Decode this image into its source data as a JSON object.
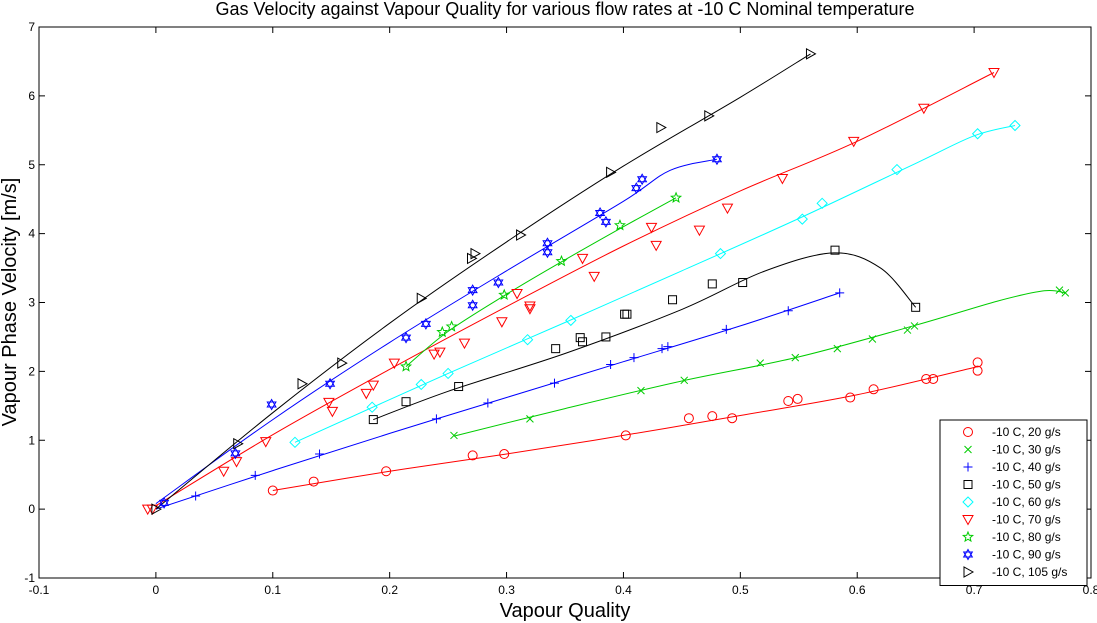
{
  "chart_data": {
    "type": "scatter",
    "title": "Gas Velocity against Vapour Quality for various flow rates at -10 C Nominal temperature",
    "xlabel": "Vapour Quality",
    "ylabel": "Vapour Phase Velocity [m/s]",
    "xlim": [
      -0.1,
      0.8
    ],
    "ylim": [
      -1,
      7
    ],
    "xticks": [
      "-0.1",
      "0",
      "0.1",
      "0.2",
      "0.3",
      "0.4",
      "0.5",
      "0.6",
      "0.7",
      "0.8"
    ],
    "yticks": [
      "-1",
      "0",
      "1",
      "2",
      "3",
      "4",
      "5",
      "6",
      "7"
    ],
    "grid": false,
    "legend_position": "bottom-right",
    "series": [
      {
        "name": "-10 C, 20 g/s",
        "color": "#ff0000",
        "marker": "circle",
        "points": [
          [
            0.1,
            0.27
          ],
          [
            0.135,
            0.4
          ],
          [
            0.197,
            0.55
          ],
          [
            0.271,
            0.78
          ],
          [
            0.298,
            0.8
          ],
          [
            0.402,
            1.07
          ],
          [
            0.456,
            1.32
          ],
          [
            0.476,
            1.35
          ],
          [
            0.493,
            1.32
          ],
          [
            0.541,
            1.57
          ],
          [
            0.549,
            1.6
          ],
          [
            0.594,
            1.62
          ],
          [
            0.614,
            1.74
          ],
          [
            0.659,
            1.89
          ],
          [
            0.665,
            1.89
          ],
          [
            0.703,
            2.01
          ],
          [
            0.703,
            2.13
          ]
        ],
        "fit": [
          [
            0.1,
            0.27
          ],
          [
            0.2,
            0.55
          ],
          [
            0.3,
            0.8
          ],
          [
            0.4,
            1.07
          ],
          [
            0.5,
            1.36
          ],
          [
            0.6,
            1.66
          ],
          [
            0.703,
            2.07
          ]
        ]
      },
      {
        "name": "-10 C, 30 g/s",
        "color": "#00cc00",
        "marker": "x",
        "points": [
          [
            0.255,
            1.07
          ],
          [
            0.32,
            1.31
          ],
          [
            0.415,
            1.72
          ],
          [
            0.452,
            1.87
          ],
          [
            0.517,
            2.12
          ],
          [
            0.547,
            2.2
          ],
          [
            0.583,
            2.33
          ],
          [
            0.613,
            2.47
          ],
          [
            0.643,
            2.6
          ],
          [
            0.649,
            2.66
          ],
          [
            0.773,
            3.18
          ],
          [
            0.778,
            3.14
          ]
        ],
        "fit": [
          [
            0.255,
            1.06
          ],
          [
            0.35,
            1.46
          ],
          [
            0.45,
            1.86
          ],
          [
            0.55,
            2.21
          ],
          [
            0.65,
            2.67
          ],
          [
            0.72,
            3.02
          ],
          [
            0.76,
            3.17
          ],
          [
            0.778,
            3.14
          ]
        ]
      },
      {
        "name": "-10 C, 40 g/s",
        "color": "#0000ff",
        "marker": "plus",
        "points": [
          [
            0.034,
            0.19
          ],
          [
            0.085,
            0.49
          ],
          [
            0.14,
            0.8
          ],
          [
            0.24,
            1.31
          ],
          [
            0.284,
            1.54
          ],
          [
            0.341,
            1.83
          ],
          [
            0.389,
            2.1
          ],
          [
            0.409,
            2.2
          ],
          [
            0.433,
            2.33
          ],
          [
            0.438,
            2.36
          ],
          [
            0.488,
            2.61
          ],
          [
            0.541,
            2.88
          ],
          [
            0.585,
            3.14
          ]
        ],
        "fit": [
          [
            0.0,
            0.0
          ],
          [
            0.1,
            0.56
          ],
          [
            0.2,
            1.1
          ],
          [
            0.3,
            1.62
          ],
          [
            0.4,
            2.14
          ],
          [
            0.5,
            2.66
          ],
          [
            0.585,
            3.14
          ]
        ]
      },
      {
        "name": "-10 C, 50 g/s",
        "color": "#000000",
        "marker": "square",
        "points": [
          [
            0.186,
            1.3
          ],
          [
            0.214,
            1.56
          ],
          [
            0.259,
            1.78
          ],
          [
            0.342,
            2.33
          ],
          [
            0.363,
            2.49
          ],
          [
            0.365,
            2.43
          ],
          [
            0.385,
            2.5
          ],
          [
            0.401,
            2.83
          ],
          [
            0.403,
            2.83
          ],
          [
            0.442,
            3.04
          ],
          [
            0.476,
            3.27
          ],
          [
            0.502,
            3.29
          ],
          [
            0.581,
            3.76
          ],
          [
            0.65,
            2.93
          ]
        ],
        "fit": [
          [
            0.186,
            1.3
          ],
          [
            0.25,
            1.71
          ],
          [
            0.35,
            2.26
          ],
          [
            0.45,
            2.9
          ],
          [
            0.52,
            3.45
          ],
          [
            0.58,
            3.72
          ],
          [
            0.62,
            3.5
          ],
          [
            0.65,
            2.93
          ]
        ]
      },
      {
        "name": "-10 C, 60 g/s",
        "color": "#00ffff",
        "marker": "diamond",
        "points": [
          [
            0.119,
            0.97
          ],
          [
            0.185,
            1.48
          ],
          [
            0.227,
            1.81
          ],
          [
            0.25,
            1.97
          ],
          [
            0.318,
            2.46
          ],
          [
            0.355,
            2.74
          ],
          [
            0.483,
            3.71
          ],
          [
            0.553,
            4.21
          ],
          [
            0.57,
            4.44
          ],
          [
            0.634,
            4.93
          ],
          [
            0.703,
            5.45
          ],
          [
            0.735,
            5.57
          ]
        ],
        "fit": [
          [
            0.119,
            0.97
          ],
          [
            0.25,
            1.97
          ],
          [
            0.35,
            2.71
          ],
          [
            0.45,
            3.46
          ],
          [
            0.55,
            4.22
          ],
          [
            0.65,
            5.02
          ],
          [
            0.7,
            5.42
          ],
          [
            0.735,
            5.57
          ]
        ]
      },
      {
        "name": "-10 C, 70 g/s",
        "color": "#ff0000",
        "marker": "triangle-down",
        "points": [
          [
            -0.007,
            0.0
          ],
          [
            -0.003,
            0.0
          ],
          [
            0.058,
            0.55
          ],
          [
            0.069,
            0.69
          ],
          [
            0.094,
            0.98
          ],
          [
            0.148,
            1.55
          ],
          [
            0.151,
            1.42
          ],
          [
            0.18,
            1.68
          ],
          [
            0.186,
            1.8
          ],
          [
            0.204,
            2.12
          ],
          [
            0.238,
            2.25
          ],
          [
            0.243,
            2.28
          ],
          [
            0.264,
            2.41
          ],
          [
            0.296,
            2.72
          ],
          [
            0.309,
            3.13
          ],
          [
            0.32,
            2.91
          ],
          [
            0.32,
            2.95
          ],
          [
            0.365,
            3.64
          ],
          [
            0.375,
            3.38
          ],
          [
            0.424,
            4.09
          ],
          [
            0.428,
            3.83
          ],
          [
            0.465,
            4.05
          ],
          [
            0.489,
            4.37
          ],
          [
            0.536,
            4.8
          ],
          [
            0.597,
            5.34
          ],
          [
            0.657,
            5.82
          ],
          [
            0.717,
            6.34
          ]
        ],
        "fit": [
          [
            0.0,
            0.05
          ],
          [
            0.1,
            1.08
          ],
          [
            0.2,
            2.03
          ],
          [
            0.3,
            2.94
          ],
          [
            0.4,
            3.82
          ],
          [
            0.5,
            4.62
          ],
          [
            0.6,
            5.34
          ],
          [
            0.717,
            6.34
          ]
        ]
      },
      {
        "name": "-10 C, 80 g/s",
        "color": "#00cc00",
        "marker": "star",
        "points": [
          [
            0.214,
            2.07
          ],
          [
            0.245,
            2.57
          ],
          [
            0.253,
            2.65
          ],
          [
            0.298,
            3.11
          ],
          [
            0.347,
            3.6
          ],
          [
            0.397,
            4.12
          ],
          [
            0.445,
            4.52
          ]
        ],
        "fit": [
          [
            0.214,
            2.07
          ],
          [
            0.25,
            2.58
          ],
          [
            0.3,
            3.12
          ],
          [
            0.35,
            3.62
          ],
          [
            0.4,
            4.1
          ],
          [
            0.445,
            4.52
          ]
        ]
      },
      {
        "name": "-10 C, 90 g/s",
        "color": "#0000ff",
        "marker": "hexagram",
        "points": [
          [
            0.007,
            0.09
          ],
          [
            0.068,
            0.81
          ],
          [
            0.099,
            1.52
          ],
          [
            0.149,
            1.82
          ],
          [
            0.214,
            2.49
          ],
          [
            0.231,
            2.69
          ],
          [
            0.271,
            2.96
          ],
          [
            0.271,
            3.18
          ],
          [
            0.293,
            3.29
          ],
          [
            0.335,
            3.86
          ],
          [
            0.335,
            3.73
          ],
          [
            0.38,
            4.3
          ],
          [
            0.385,
            4.17
          ],
          [
            0.411,
            4.66
          ],
          [
            0.416,
            4.79
          ],
          [
            0.48,
            5.08
          ]
        ],
        "fit": [
          [
            0.0,
            0.08
          ],
          [
            0.1,
            1.3
          ],
          [
            0.2,
            2.42
          ],
          [
            0.3,
            3.46
          ],
          [
            0.4,
            4.47
          ],
          [
            0.44,
            4.92
          ],
          [
            0.48,
            5.08
          ]
        ]
      },
      {
        "name": "-10 C, 105 g/s",
        "color": "#000000",
        "marker": "triangle-right",
        "points": [
          [
            0.0,
            0.0
          ],
          [
            0.07,
            0.95
          ],
          [
            0.125,
            1.82
          ],
          [
            0.159,
            2.12
          ],
          [
            0.227,
            3.06
          ],
          [
            0.27,
            3.64
          ],
          [
            0.273,
            3.71
          ],
          [
            0.312,
            3.98
          ],
          [
            0.389,
            4.89
          ],
          [
            0.432,
            5.54
          ],
          [
            0.473,
            5.71
          ],
          [
            0.56,
            6.61
          ]
        ],
        "fit": [
          [
            0.0,
            0.0
          ],
          [
            0.1,
            1.4
          ],
          [
            0.2,
            2.7
          ],
          [
            0.3,
            3.88
          ],
          [
            0.4,
            4.98
          ],
          [
            0.5,
            5.98
          ],
          [
            0.56,
            6.61
          ]
        ]
      }
    ]
  }
}
